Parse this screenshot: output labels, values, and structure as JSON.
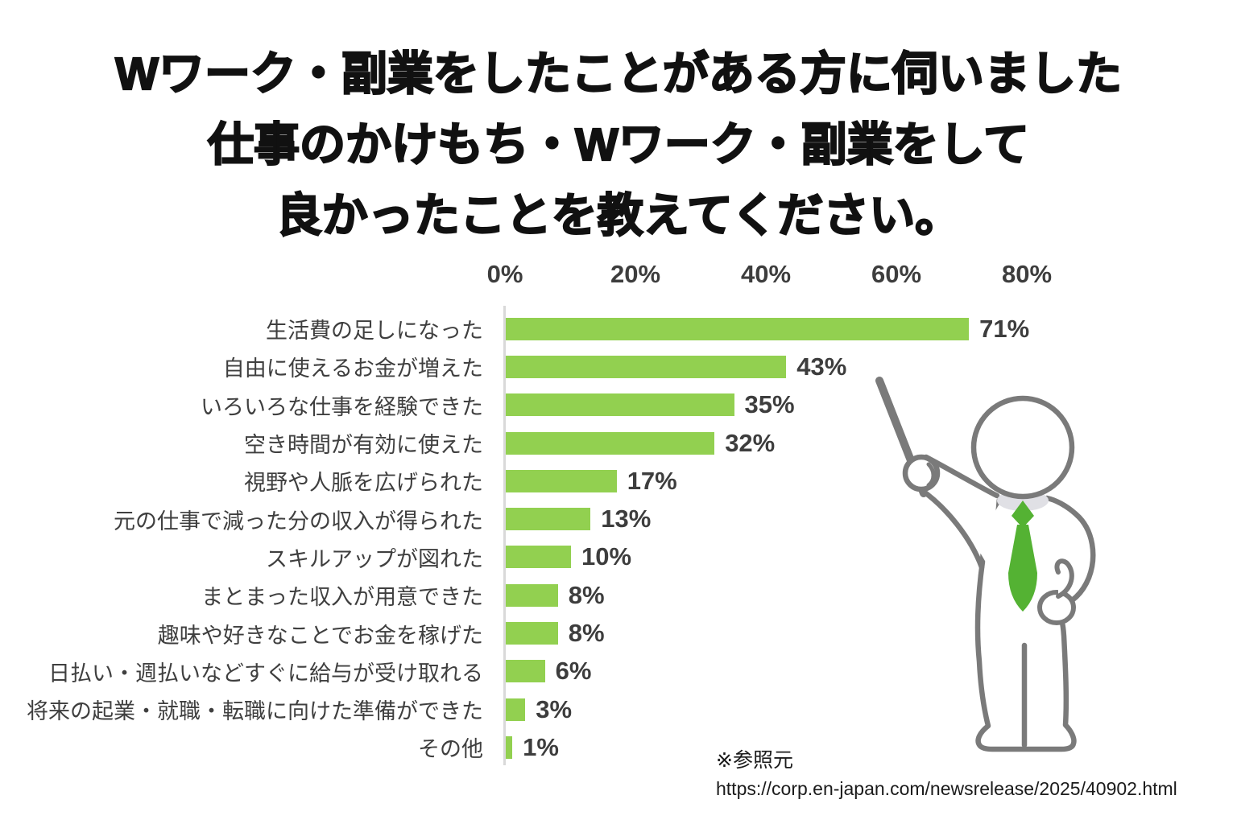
{
  "title": {
    "lines": [
      "Wワーク・副業をしたことがある方に伺いました",
      "仕事のかけもち・Wワーク・副業をして",
      "良かったことを教えてください。"
    ]
  },
  "chart_data": {
    "type": "bar",
    "orientation": "horizontal",
    "title": "仕事のかけもち・Wワーク・副業をして良かったこと",
    "categories": [
      "生活費の足しになった",
      "自由に使えるお金が増えた",
      "いろいろな仕事を経験できた",
      "空き時間が有効に使えた",
      "視野や人脈を広げられた",
      "元の仕事で減った分の収入が得られた",
      "スキルアップが図れた",
      "まとまった収入が用意できた",
      "趣味や好きなことでお金を稼げた",
      "日払い・週払いなどすぐに給与が受け取れる",
      "将来の起業・就職・転職に向けた準備ができた",
      "その他"
    ],
    "values": [
      71,
      43,
      35,
      32,
      17,
      13,
      10,
      8,
      8,
      6,
      3,
      1
    ],
    "value_labels": [
      "71%",
      "43%",
      "35%",
      "32%",
      "17%",
      "13%",
      "10%",
      "8%",
      "8%",
      "6%",
      "3%",
      "1%"
    ],
    "x_tick_labels": [
      "0%",
      "20%",
      "40%",
      "60%",
      "80%"
    ],
    "x_tick_values": [
      0,
      20,
      40,
      60,
      80
    ],
    "xlim": [
      0,
      80
    ],
    "grid": false,
    "legend": false,
    "value_label_position": "outside-end",
    "bar_color": "#92D050"
  },
  "footer": {
    "source_note": "※参照元",
    "source_url": "https://corp.en-japan.com/newsrelease/2025/40902.html"
  },
  "illustration": {
    "name": "presenter-with-pointer",
    "outline_color": "#7a7a7a",
    "tie_color": "#54B233",
    "collar_color": "#E0E0E5"
  }
}
